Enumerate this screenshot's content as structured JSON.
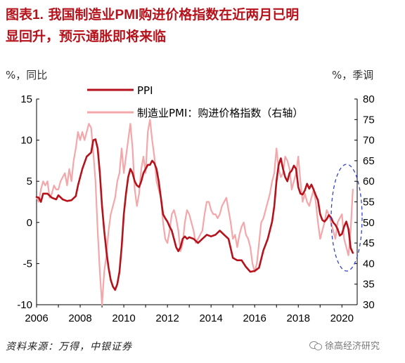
{
  "title": {
    "prefix": "图表",
    "number": "1.",
    "line1_text": "我国制造业",
    "line1_highlight": "PMI",
    "line1_rest": "购进价格指数在近两月已明",
    "line2": "显回升，预示通胀即将来临"
  },
  "axes": {
    "left_unit": "%，同比",
    "right_unit": "%，季调"
  },
  "source": "资料来源：万得，中银证券",
  "watermark": "徐高经济研究",
  "colors": {
    "ppi": "#b5121b",
    "pmi": "#f4a7aa",
    "ellipse": "#3344cc"
  },
  "chart_data": {
    "type": "line",
    "title": "",
    "xlabel": "",
    "ylabel": "%，同比",
    "ylabel_right": "%，季调",
    "xlim": [
      2006.0,
      2020.7
    ],
    "ylim_left": [
      -10,
      15
    ],
    "ylim_right": [
      30,
      80
    ],
    "x_ticks": [
      "2006",
      "2008",
      "2010",
      "2012",
      "2014",
      "2016",
      "2018",
      "2020"
    ],
    "y_ticks_left": [
      "15",
      "10",
      "5",
      "0",
      "-5",
      "-10"
    ],
    "y_ticks_right": [
      "80",
      "75",
      "70",
      "65",
      "60",
      "55",
      "50",
      "45",
      "40",
      "35",
      "30"
    ],
    "grid": false,
    "legend": "top",
    "annotation": "ellipse around 2020 data",
    "series": [
      {
        "name": "PPI",
        "axis": "left",
        "x": [
          2006.0,
          2006.1,
          2006.2,
          2006.3,
          2006.5,
          2006.7,
          2006.9,
          2007.0,
          2007.2,
          2007.4,
          2007.6,
          2007.8,
          2007.9,
          2008.1,
          2008.3,
          2008.5,
          2008.6,
          2008.7,
          2008.8,
          2008.9,
          2009.0,
          2009.1,
          2009.2,
          2009.3,
          2009.4,
          2009.5,
          2009.6,
          2009.7,
          2009.8,
          2009.9,
          2010.0,
          2010.1,
          2010.2,
          2010.3,
          2010.4,
          2010.5,
          2010.6,
          2010.7,
          2010.8,
          2010.9,
          2011.0,
          2011.1,
          2011.2,
          2011.3,
          2011.4,
          2011.5,
          2011.6,
          2011.7,
          2011.8,
          2011.9,
          2012.0,
          2012.1,
          2012.2,
          2012.3,
          2012.4,
          2012.5,
          2012.6,
          2012.7,
          2012.8,
          2012.9,
          2013.0,
          2013.2,
          2013.4,
          2013.6,
          2013.8,
          2014.0,
          2014.2,
          2014.4,
          2014.6,
          2014.8,
          2015.0,
          2015.2,
          2015.4,
          2015.6,
          2015.8,
          2016.0,
          2016.2,
          2016.4,
          2016.6,
          2016.8,
          2016.9,
          2017.0,
          2017.1,
          2017.2,
          2017.3,
          2017.4,
          2017.5,
          2017.6,
          2017.7,
          2017.8,
          2017.9,
          2018.0,
          2018.1,
          2018.2,
          2018.3,
          2018.4,
          2018.5,
          2018.6,
          2018.7,
          2018.8,
          2018.9,
          2019.0,
          2019.1,
          2019.2,
          2019.3,
          2019.4,
          2019.5,
          2019.6,
          2019.7,
          2019.8,
          2019.9,
          2020.0,
          2020.1,
          2020.2,
          2020.3,
          2020.4,
          2020.5
        ],
        "values": [
          3.1,
          3.0,
          2.5,
          3.5,
          3.5,
          3.0,
          2.8,
          3.3,
          2.8,
          2.6,
          2.7,
          3.2,
          4.5,
          6.5,
          8.0,
          8.5,
          10.0,
          10.1,
          9.0,
          6.0,
          2.0,
          -1.0,
          -3.5,
          -5.5,
          -7.0,
          -7.8,
          -8.2,
          -7.5,
          -6.0,
          -3.0,
          1.0,
          3.5,
          5.5,
          6.5,
          6.0,
          5.0,
          4.5,
          4.3,
          5.0,
          6.0,
          6.5,
          7.0,
          7.0,
          7.5,
          7.2,
          6.5,
          5.0,
          3.0,
          1.0,
          0.5,
          0.1,
          -0.5,
          -1.0,
          -2.0,
          -3.0,
          -3.5,
          -3.0,
          -2.0,
          -1.7,
          -2.0,
          -1.8,
          -2.0,
          -2.5,
          -2.0,
          -1.5,
          -1.7,
          -1.5,
          -1.0,
          -1.5,
          -2.0,
          -4.3,
          -4.6,
          -4.6,
          -5.4,
          -6.0,
          -5.9,
          -5.5,
          -3.4,
          -2.0,
          0.1,
          2.0,
          5.0,
          7.0,
          7.8,
          6.5,
          5.5,
          5.0,
          6.0,
          6.3,
          6.9,
          6.5,
          4.3,
          3.5,
          3.4,
          3.9,
          4.7,
          4.1,
          4.6,
          4.0,
          3.3,
          2.7,
          1.0,
          0.3,
          0.1,
          0.4,
          0.9,
          0.6,
          0.0,
          -0.3,
          -0.8,
          -1.6,
          -1.4,
          -0.5,
          0.1,
          -0.8,
          -3.1,
          -3.7
        ]
      },
      {
        "name": "制造业PMI：购进价格指数（右轴）",
        "axis": "right",
        "x": [
          2006.0,
          2006.1,
          2006.2,
          2006.3,
          2006.4,
          2006.5,
          2006.6,
          2006.7,
          2006.8,
          2006.9,
          2007.0,
          2007.1,
          2007.2,
          2007.3,
          2007.4,
          2007.5,
          2007.6,
          2007.7,
          2007.8,
          2007.9,
          2008.0,
          2008.1,
          2008.2,
          2008.3,
          2008.4,
          2008.5,
          2008.6,
          2008.7,
          2008.8,
          2008.9,
          2009.0,
          2009.1,
          2009.2,
          2009.3,
          2009.4,
          2009.5,
          2009.6,
          2009.7,
          2009.8,
          2009.9,
          2010.0,
          2010.1,
          2010.2,
          2010.3,
          2010.4,
          2010.5,
          2010.6,
          2010.7,
          2010.8,
          2010.9,
          2011.0,
          2011.1,
          2011.2,
          2011.3,
          2011.4,
          2011.5,
          2011.6,
          2011.7,
          2011.8,
          2011.9,
          2012.0,
          2012.1,
          2012.2,
          2012.3,
          2012.4,
          2012.5,
          2012.6,
          2012.7,
          2012.8,
          2012.9,
          2013.0,
          2013.1,
          2013.2,
          2013.3,
          2013.4,
          2013.5,
          2013.6,
          2013.7,
          2013.8,
          2013.9,
          2014.0,
          2014.1,
          2014.2,
          2014.3,
          2014.4,
          2014.5,
          2014.6,
          2014.7,
          2014.8,
          2014.9,
          2015.0,
          2015.1,
          2015.2,
          2015.3,
          2015.4,
          2015.5,
          2015.6,
          2015.7,
          2015.8,
          2015.9,
          2016.0,
          2016.1,
          2016.2,
          2016.3,
          2016.4,
          2016.5,
          2016.6,
          2016.7,
          2016.8,
          2016.9,
          2017.0,
          2017.1,
          2017.2,
          2017.3,
          2017.4,
          2017.5,
          2017.6,
          2017.7,
          2017.8,
          2017.9,
          2018.0,
          2018.1,
          2018.2,
          2018.3,
          2018.4,
          2018.5,
          2018.6,
          2018.7,
          2018.8,
          2018.9,
          2019.0,
          2019.1,
          2019.2,
          2019.3,
          2019.4,
          2019.5,
          2019.6,
          2019.7,
          2019.8,
          2019.9,
          2020.0,
          2020.1,
          2020.2,
          2020.3,
          2020.4,
          2020.5
        ],
        "values": [
          56,
          55,
          58,
          60,
          59,
          60,
          56,
          57,
          59,
          58,
          58,
          60,
          61,
          62,
          59,
          63,
          60,
          65,
          68,
          72,
          70,
          72,
          70,
          72,
          74,
          73,
          67,
          60,
          48,
          38,
          30,
          38,
          42,
          48,
          52,
          54,
          56,
          60,
          62,
          68,
          62,
          66,
          70,
          74,
          68,
          58,
          54,
          57,
          63,
          66,
          62,
          72,
          75,
          70,
          66,
          60,
          58,
          56,
          50,
          46,
          45,
          48,
          52,
          53,
          51,
          48,
          43,
          45,
          50,
          53,
          52,
          50,
          48,
          45,
          46,
          47,
          48,
          52,
          55,
          55,
          53,
          52,
          52,
          51,
          52,
          54,
          55,
          56,
          53,
          50,
          46,
          47,
          44,
          47,
          49,
          50,
          47,
          46,
          44,
          40,
          38,
          40,
          45,
          50,
          51,
          53,
          55,
          57,
          60,
          62,
          68,
          63,
          61,
          62,
          66,
          65,
          63,
          58,
          60,
          62,
          66,
          60,
          55,
          57,
          55,
          54,
          56,
          58,
          55,
          50,
          46,
          48,
          50,
          53,
          52,
          50,
          48,
          46,
          50,
          51,
          52,
          46,
          44,
          42,
          48,
          58
        ]
      }
    ]
  }
}
